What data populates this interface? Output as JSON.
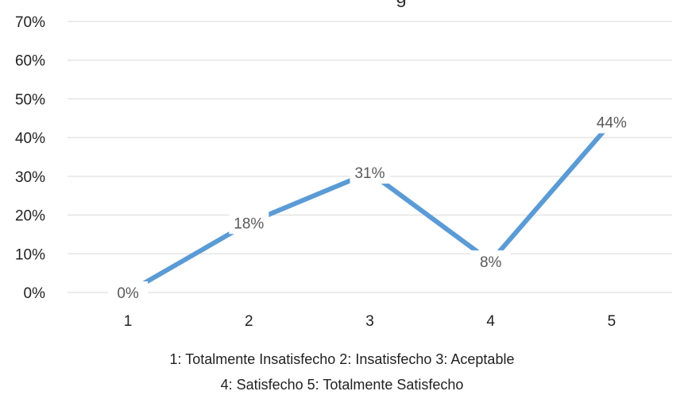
{
  "chart_data": {
    "type": "line",
    "title": "g",
    "categories": [
      "1",
      "2",
      "3",
      "4",
      "5"
    ],
    "series": [
      {
        "values": [
          0,
          18,
          31,
          8,
          44
        ],
        "data_labels": [
          "0%",
          "18%",
          "31%",
          "8%",
          "44%"
        ]
      }
    ],
    "ylim": [
      0,
      70
    ],
    "yticks": [
      "0%",
      "10%",
      "20%",
      "30%",
      "40%",
      "50%",
      "60%",
      "70%"
    ],
    "grid": true,
    "line_color": "#5B9BD5",
    "grid_color": "#D9D9D9"
  },
  "legend_notes": {
    "line1": "1: Totalmente Insatisfecho   2: Insatisfecho   3: Aceptable",
    "line2": "4: Satisfecho   5: Totalmente Satisfecho"
  }
}
